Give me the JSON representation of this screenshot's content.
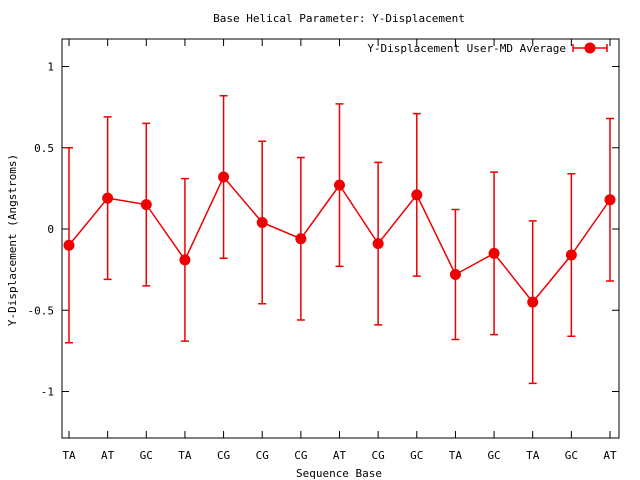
{
  "chart_data": {
    "type": "line",
    "title": "Base  Helical Parameter: Y-Displacement",
    "xlabel": "Sequence Base",
    "ylabel": "Y-Displacement (Angstroms)",
    "categories": [
      "TA",
      "AT",
      "GC",
      "TA",
      "CG",
      "CG",
      "CG",
      "AT",
      "CG",
      "GC",
      "TA",
      "GC",
      "TA",
      "GC",
      "AT"
    ],
    "ylim": [
      -1.3,
      1.17
    ],
    "yticks": [
      1,
      0.5,
      0,
      -0.5,
      -1
    ],
    "ytick_labels": [
      "1",
      "0.5",
      "0",
      "-0.5",
      "-1"
    ],
    "grid": false,
    "legend_position": "top-right",
    "series": [
      {
        "name": "Y-Displacement User-MD Average",
        "color": "#ee0000",
        "values": [
          -0.1,
          0.19,
          0.15,
          -0.19,
          0.32,
          0.04,
          -0.06,
          0.27,
          -0.09,
          0.21,
          -0.28,
          -0.15,
          -0.45,
          -0.16,
          0.18
        ],
        "errors": [
          0.6,
          0.5,
          0.5,
          0.5,
          0.5,
          0.5,
          0.5,
          0.5,
          0.5,
          0.5,
          0.4,
          0.5,
          0.5,
          0.5,
          0.5
        ]
      }
    ]
  }
}
